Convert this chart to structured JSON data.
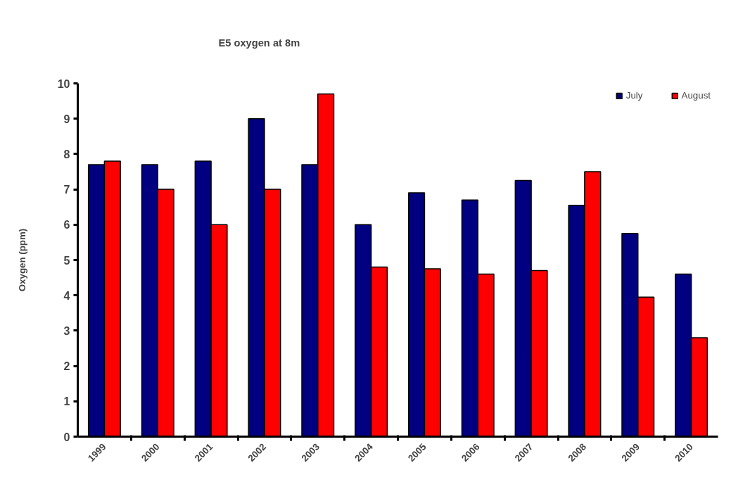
{
  "chart_data": {
    "type": "bar",
    "title": "E5 oxygen at 8m",
    "ylabel": "Oxygen (ppm)",
    "categories": [
      "1999",
      "2000",
      "2001",
      "2002",
      "2003",
      "2004",
      "2005",
      "2006",
      "2007",
      "2008",
      "2009",
      "2010"
    ],
    "series": [
      {
        "name": "July",
        "color": "#000080",
        "values": [
          7.7,
          7.7,
          7.8,
          9.0,
          7.7,
          6.0,
          6.9,
          6.7,
          7.25,
          6.55,
          5.75,
          4.6
        ]
      },
      {
        "name": "August",
        "color": "#ff0000",
        "values": [
          7.8,
          7.0,
          6.0,
          7.0,
          9.7,
          4.8,
          4.75,
          4.6,
          4.7,
          7.5,
          3.95,
          2.8
        ]
      }
    ],
    "ylim": [
      0,
      10
    ],
    "yticks": [
      0,
      1,
      2,
      3,
      4,
      5,
      6,
      7,
      8,
      9,
      10
    ],
    "grid": false,
    "legend": "top right"
  }
}
